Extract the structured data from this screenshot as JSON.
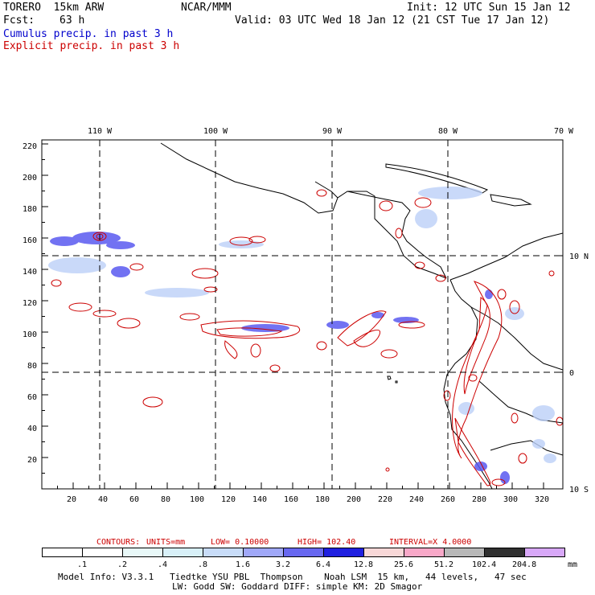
{
  "header": {
    "model": "TORERO  15km ARW",
    "org": "NCAR/MMM",
    "init": "Init: 12 UTC Sun 15 Jan 12",
    "fcst_label": "Fcst:",
    "fcst_value": "63 h",
    "valid": "Valid: 03 UTC Wed 18 Jan 12 (21 CST Tue 17 Jan 12)",
    "cumulus": "Cumulus precip. in past 3 h",
    "explicit": "Explicit precip. in past 3 h"
  },
  "colors": {
    "cumulus": "#0000cc",
    "explicit": "#cc0000",
    "contour": "#cc0000"
  },
  "axes": {
    "top_lon": [
      "110 W",
      "100 W",
      "90 W",
      "80 W",
      "70 W"
    ],
    "right_lat": [
      "10 N",
      "0",
      "10 S"
    ],
    "left_y": [
      "220",
      "200",
      "180",
      "160",
      "140",
      "120",
      "100",
      "80",
      "60",
      "40",
      "20"
    ],
    "bottom_x": [
      "20",
      "40",
      "60",
      "80",
      "100",
      "120",
      "140",
      "160",
      "180",
      "200",
      "220",
      "240",
      "260",
      "280",
      "300",
      "320"
    ]
  },
  "contours": {
    "label": "CONTOURS:",
    "units": "UNITS=mm",
    "low": "LOW= 0.10000",
    "high": "HIGH= 102.40",
    "interval": "INTERVAL=X  4.0000"
  },
  "colorbar": {
    "labels": [
      ".1",
      ".2",
      ".4",
      ".8",
      "1.6",
      "3.2",
      "6.4",
      "12.8",
      "25.6",
      "51.2",
      "102.4",
      "204.8"
    ],
    "unit": "mm",
    "colors": [
      "#ffffff",
      "#ffffff",
      "#e8f8f8",
      "#d8f0f8",
      "#c8dcf8",
      "#a0a8f8",
      "#6868f0",
      "#2020e0",
      "#f8d8d8",
      "#f8a8c8",
      "#b8b8b8",
      "#303030",
      "#d8a8f8"
    ]
  },
  "footer": {
    "line1": "Model Info: V3.3.1   Tiedtke YSU PBL  Thompson    Noah LSM  15 km,   44 levels,   47 sec",
    "line2": "LW: Godd SW: Goddard DIFF: simple KM: 2D Smagor"
  }
}
